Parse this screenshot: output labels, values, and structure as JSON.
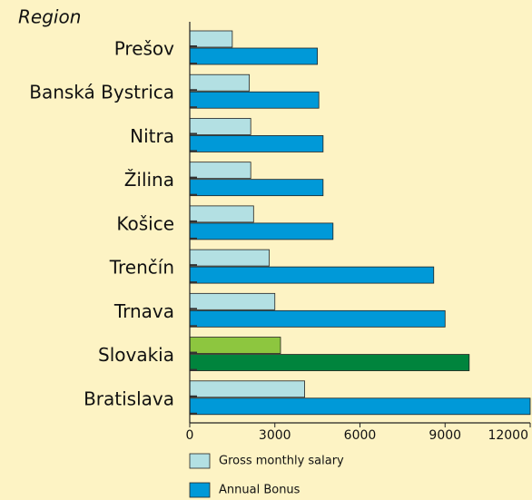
{
  "chart_data": {
    "type": "barh",
    "axis_title": "Region",
    "categories": [
      "Prešov",
      "Banská Bystrica",
      "Nitra",
      "Žilina",
      "Košice",
      "Trenčín",
      "Trnava",
      "Slovakia",
      "Bratislava"
    ],
    "series": [
      {
        "name": "Gross monthly salary",
        "color": "#b3e0e3",
        "values": [
          1500,
          2100,
          2150,
          2150,
          2250,
          2800,
          3000,
          3200,
          4050
        ]
      },
      {
        "name": "Annual Bonus",
        "color": "#0099d8",
        "values": [
          4500,
          4550,
          4700,
          4700,
          5050,
          8600,
          9000,
          9850,
          12000
        ]
      }
    ],
    "highlight": {
      "index": 7,
      "colors": [
        "#8dc63f",
        "#00843d"
      ],
      "label_color": "#1a9641"
    },
    "xlim": [
      0,
      12000
    ],
    "xticks": [
      0,
      3000,
      6000,
      9000,
      12000
    ],
    "background": "#fdf3c4"
  }
}
